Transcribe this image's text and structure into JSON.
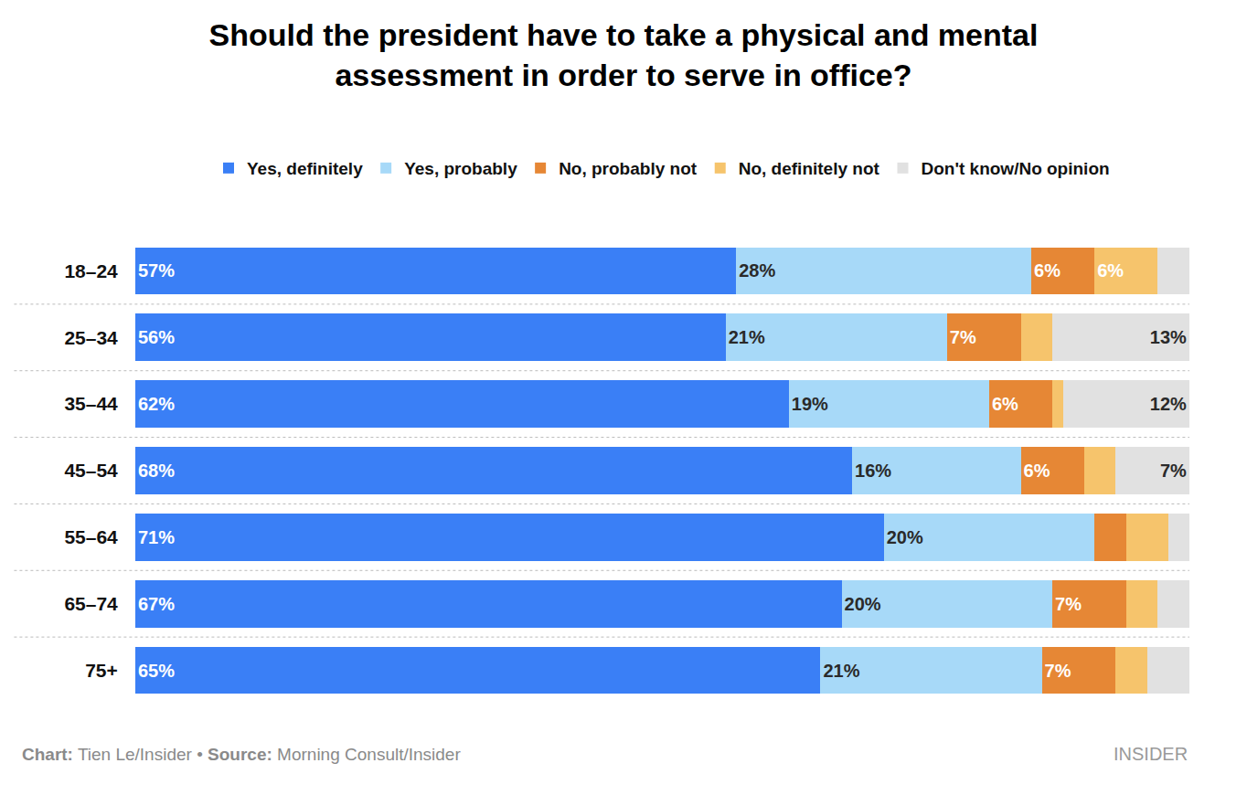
{
  "chart_data": {
    "type": "bar",
    "title": "Should the president have to take a physical and mental assessment in order to serve in office?",
    "orientation": "horizontal",
    "stacked": true,
    "data_labels": true,
    "tick_labels": "y",
    "legend": "top",
    "grid": false,
    "categories": [
      "18–24",
      "25–34",
      "35–44",
      "45–54",
      "55–64",
      "65–74",
      "75+"
    ],
    "xlim": [
      0,
      100
    ],
    "series": [
      {
        "name": "Yes, definitely",
        "color": "#3a7ff6",
        "values": [
          57,
          56,
          62,
          68,
          71,
          67,
          65
        ],
        "value_labels": [
          "57%",
          "56%",
          "62%",
          "68%",
          "71%",
          "67%",
          "65%"
        ]
      },
      {
        "name": "Yes, probably",
        "color": "#a7d9f8",
        "values": [
          28,
          21,
          19,
          16,
          20,
          20,
          21
        ],
        "value_labels": [
          "28%",
          "21%",
          "19%",
          "16%",
          "20%",
          "20%",
          "21%"
        ]
      },
      {
        "name": "No, probably not",
        "color": "#e68735",
        "values": [
          6,
          7,
          6,
          6,
          3,
          7,
          7
        ],
        "value_labels": [
          "6%",
          "7%",
          "6%",
          "6%",
          null,
          "7%",
          "7%"
        ]
      },
      {
        "name": "No, definitely not",
        "color": "#f6c46c",
        "values": [
          6,
          3,
          1,
          3,
          4,
          3,
          3
        ],
        "value_labels": [
          "6%",
          null,
          null,
          null,
          null,
          null,
          null
        ]
      },
      {
        "name": "Don't know/No opinion",
        "color": "#e1e1e1",
        "values": [
          3,
          13,
          12,
          7,
          2,
          3,
          4
        ],
        "value_labels": [
          null,
          "13%",
          "12%",
          "7%",
          null,
          null,
          null
        ]
      }
    ],
    "source": "Chart: Tien Le/Insider • Source: Morning Consult/Insider",
    "brand": "INSIDER"
  }
}
